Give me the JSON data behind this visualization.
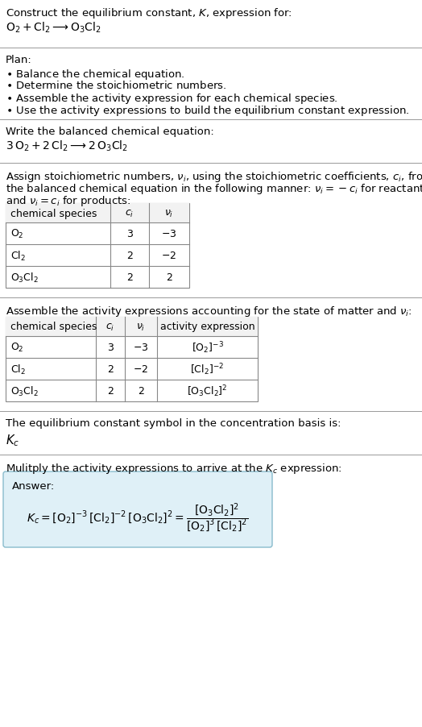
{
  "title_line1": "Construct the equilibrium constant, $K$, expression for:",
  "title_line2": "$\\mathrm{O_2 + Cl_2 \\longrightarrow O_3Cl_2}$",
  "plan_header": "Plan:",
  "plan_items": [
    "$\\bullet$ Balance the chemical equation.",
    "$\\bullet$ Determine the stoichiometric numbers.",
    "$\\bullet$ Assemble the activity expression for each chemical species.",
    "$\\bullet$ Use the activity expressions to build the equilibrium constant expression."
  ],
  "balanced_header": "Write the balanced chemical equation:",
  "balanced_eq": "$3\\,\\mathrm{O_2} + 2\\,\\mathrm{Cl_2} \\longrightarrow 2\\,\\mathrm{O_3Cl_2}$",
  "stoich_intro1": "Assign stoichiometric numbers, $\\nu_i$, using the stoichiometric coefficients, $c_i$, from",
  "stoich_intro2": "the balanced chemical equation in the following manner: $\\nu_i = -c_i$ for reactants",
  "stoich_intro3": "and $\\nu_i = c_i$ for products:",
  "table1_headers": [
    "chemical species",
    "$c_i$",
    "$\\nu_i$"
  ],
  "table1_rows": [
    [
      "$\\mathrm{O_2}$",
      "3",
      "$-3$"
    ],
    [
      "$\\mathrm{Cl_2}$",
      "2",
      "$-2$"
    ],
    [
      "$\\mathrm{O_3Cl_2}$",
      "2",
      "2"
    ]
  ],
  "assemble_intro": "Assemble the activity expressions accounting for the state of matter and $\\nu_i$:",
  "table2_headers": [
    "chemical species",
    "$c_i$",
    "$\\nu_i$",
    "activity expression"
  ],
  "table2_rows": [
    [
      "$\\mathrm{O_2}$",
      "3",
      "$-3$",
      "$[\\mathrm{O_2}]^{-3}$"
    ],
    [
      "$\\mathrm{Cl_2}$",
      "2",
      "$-2$",
      "$[\\mathrm{Cl_2}]^{-2}$"
    ],
    [
      "$\\mathrm{O_3Cl_2}$",
      "2",
      "2",
      "$[\\mathrm{O_3Cl_2}]^{2}$"
    ]
  ],
  "kc_text": "The equilibrium constant symbol in the concentration basis is:",
  "kc_symbol": "$K_c$",
  "multiply_text": "Mulitply the activity expressions to arrive at the $K_c$ expression:",
  "answer_label": "Answer:",
  "answer_eq1": "$K_c = [\\mathrm{O_2}]^{-3}\\,[\\mathrm{Cl_2}]^{-2}\\,[\\mathrm{O_3Cl_2}]^{2} = \\dfrac{[\\mathrm{O_3Cl_2}]^{2}}{[\\mathrm{O_2}]^{3}\\,[\\mathrm{Cl_2}]^{2}}$",
  "bg_color": "#ffffff",
  "answer_box_bg": "#dff0f7",
  "answer_box_border": "#88bbcc",
  "separator_color": "#999999",
  "table_border_color": "#888888",
  "text_color": "#000000",
  "font_size": 9.5
}
